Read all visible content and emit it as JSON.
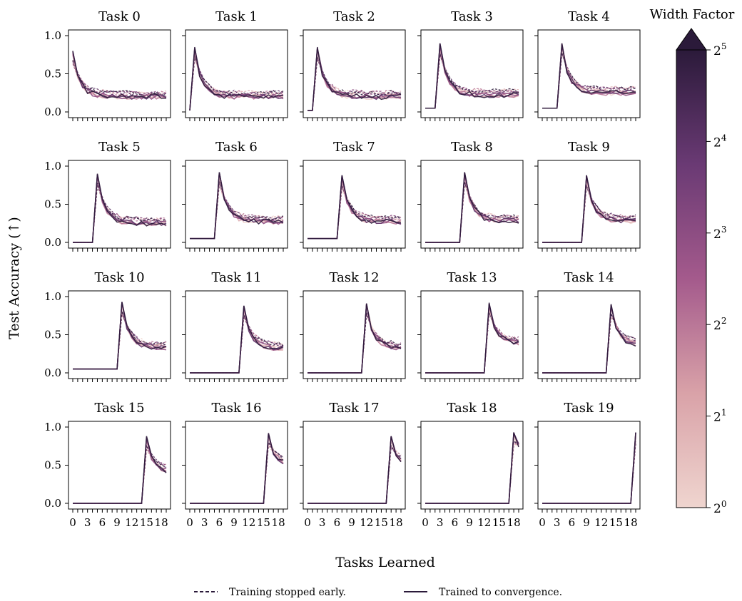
{
  "chart_data": {
    "type": "line",
    "grid": false,
    "panels": [
      {
        "title": "Task 0",
        "task": 0
      },
      {
        "title": "Task 1",
        "task": 1
      },
      {
        "title": "Task 2",
        "task": 2
      },
      {
        "title": "Task 3",
        "task": 3
      },
      {
        "title": "Task 4",
        "task": 4
      },
      {
        "title": "Task 5",
        "task": 5
      },
      {
        "title": "Task 6",
        "task": 6
      },
      {
        "title": "Task 7",
        "task": 7
      },
      {
        "title": "Task 8",
        "task": 8
      },
      {
        "title": "Task 9",
        "task": 9
      },
      {
        "title": "Task 10",
        "task": 10
      },
      {
        "title": "Task 11",
        "task": 11
      },
      {
        "title": "Task 12",
        "task": 12
      },
      {
        "title": "Task 13",
        "task": 13
      },
      {
        "title": "Task 14",
        "task": 14
      },
      {
        "title": "Task 15",
        "task": 15
      },
      {
        "title": "Task 16",
        "task": 16
      },
      {
        "title": "Task 17",
        "task": 17
      },
      {
        "title": "Task 18",
        "task": 18
      },
      {
        "title": "Task 19",
        "task": 19
      }
    ],
    "xlabel": "Tasks Learned",
    "ylabel": "Test Accuracy (↑)",
    "xlim": [
      0,
      19
    ],
    "ylim": [
      0,
      1.0
    ],
    "xticks": [
      0,
      3,
      6,
      9,
      12,
      15,
      18
    ],
    "xtick_labels": [
      "0",
      "3",
      "6",
      "9",
      "12",
      "15",
      "18"
    ],
    "yticks": [
      0.0,
      0.5,
      1.0
    ],
    "ytick_labels": [
      "0.0",
      "0.5",
      "1.0"
    ],
    "colorbar": {
      "title": "Width Factor",
      "scale": "log2",
      "ticks": [
        {
          "base": "2",
          "exp": "0"
        },
        {
          "base": "2",
          "exp": "1"
        },
        {
          "base": "2",
          "exp": "2"
        },
        {
          "base": "2",
          "exp": "3"
        },
        {
          "base": "2",
          "exp": "4"
        },
        {
          "base": "2",
          "exp": "5"
        }
      ],
      "color_low": "#efd5cf",
      "color_mid": "#a45a8c",
      "color_high": "#2b1a3a",
      "extend": "max"
    },
    "width_factors": [
      1,
      2,
      4,
      8,
      16,
      32
    ],
    "series_styles": [
      {
        "name": "Training stopped early.",
        "dash": "dashed"
      },
      {
        "name": "Trained to convergence.",
        "dash": "solid"
      }
    ],
    "peak_accuracy_by_task": [
      0.8,
      0.85,
      0.85,
      0.9,
      0.9,
      0.9,
      0.92,
      0.88,
      0.92,
      0.88,
      0.93,
      0.88,
      0.91,
      0.92,
      0.9,
      0.88,
      0.92,
      0.88,
      0.93,
      0.93
    ],
    "final_accuracy_by_task": [
      0.2,
      0.2,
      0.2,
      0.22,
      0.25,
      0.25,
      0.27,
      0.27,
      0.28,
      0.28,
      0.33,
      0.32,
      0.32,
      0.38,
      0.36,
      0.4,
      0.5,
      0.48,
      0.65,
      0.93
    ],
    "initial_accuracy_by_task": [
      0.7,
      0.02,
      0.02,
      0.05,
      0.05,
      0.0,
      0.05,
      0.05,
      0.0,
      0.0,
      0.05,
      0.0,
      0.0,
      0.0,
      0.0,
      0.0,
      0.0,
      0.0,
      0.0,
      0.0
    ],
    "legend_position": "bottom-center"
  }
}
